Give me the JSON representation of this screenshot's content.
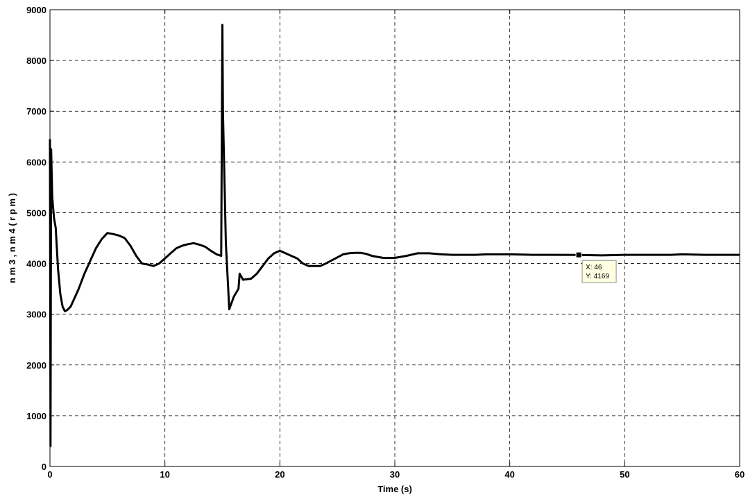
{
  "chart_data": {
    "type": "line",
    "title": "",
    "xlabel": "Time (s)",
    "ylabel": "n m 3 ,  n m 4  ( r p m )",
    "xlim": [
      0,
      60
    ],
    "ylim": [
      0,
      9000
    ],
    "x_ticks": [
      "0",
      "10",
      "20",
      "30",
      "40",
      "50",
      "60"
    ],
    "y_ticks": [
      "0",
      "1000",
      "2000",
      "3000",
      "4000",
      "5000",
      "6000",
      "7000",
      "8000",
      "9000"
    ],
    "grid": true,
    "legend": "none",
    "line_color": "#000000",
    "series": [
      {
        "x": [
          0,
          0.05,
          0.1,
          0.2,
          0.35,
          0.5,
          0.7,
          0.9,
          1.1,
          1.3,
          1.5,
          1.8,
          2.1,
          2.5,
          3.0,
          3.5,
          4.0,
          4.5,
          5.0,
          5.5,
          6.0,
          6.5,
          7.0,
          7.5,
          8.0,
          8.5,
          9.0,
          9.5,
          10.0,
          10.5,
          11.0,
          11.5,
          12.0,
          12.5,
          13.0,
          13.5,
          14.0,
          14.5,
          14.9,
          15.0,
          15.05,
          15.3,
          15.6,
          16.0,
          16.4,
          16.5,
          16.8,
          17.5,
          18.0,
          18.5,
          19.0,
          19.5,
          20.0,
          20.5,
          21.0,
          21.5,
          22.0,
          22.5,
          23.0,
          23.5,
          24.0,
          24.5,
          25.0,
          25.5,
          26.0,
          26.5,
          27.0,
          27.5,
          28.0,
          28.5,
          29.0,
          30.0,
          31.0,
          32.0,
          33.0,
          34.0,
          35.0,
          36.0,
          37.0,
          38.0,
          40.0,
          42.0,
          44.0,
          46.0,
          48.0,
          50.0,
          52.0,
          54.0,
          55.0,
          57.0,
          58.0,
          60.0
        ],
        "y": [
          6450,
          400,
          6250,
          5300,
          4900,
          4700,
          3900,
          3400,
          3150,
          3060,
          3080,
          3150,
          3300,
          3500,
          3800,
          4050,
          4300,
          4480,
          4600,
          4580,
          4550,
          4500,
          4350,
          4150,
          4000,
          3980,
          3950,
          4000,
          4100,
          4200,
          4300,
          4350,
          4380,
          4400,
          4370,
          4330,
          4250,
          4180,
          4150,
          8700,
          7000,
          4400,
          3100,
          3350,
          3500,
          3800,
          3680,
          3700,
          3800,
          3950,
          4100,
          4200,
          4250,
          4200,
          4150,
          4100,
          4000,
          3950,
          3950,
          3950,
          4000,
          4060,
          4120,
          4180,
          4200,
          4210,
          4210,
          4190,
          4150,
          4130,
          4110,
          4110,
          4150,
          4200,
          4200,
          4180,
          4170,
          4170,
          4170,
          4180,
          4180,
          4170,
          4170,
          4169,
          4160,
          4170,
          4170,
          4170,
          4180,
          4170,
          4170,
          4170
        ]
      }
    ],
    "annotations": [
      {
        "type": "datatip",
        "x": 46,
        "y": 4169,
        "lines": [
          "X: 46",
          "Y: 4169"
        ]
      }
    ]
  }
}
